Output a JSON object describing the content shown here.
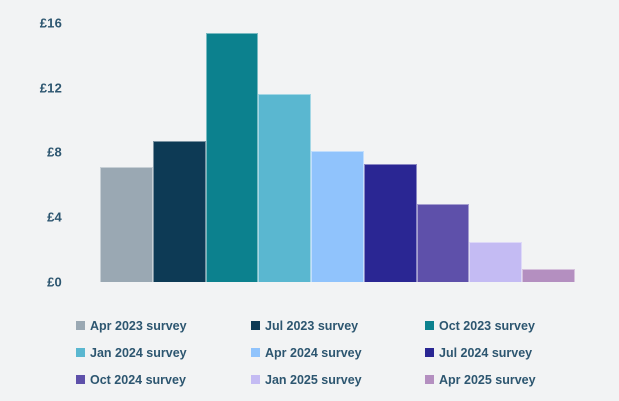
{
  "style": {
    "background": "#f2f3f4",
    "text_color": "#2d5670",
    "bar_border": "rgba(255,255,255,0.45)"
  },
  "chart_data": {
    "type": "bar",
    "title": "",
    "xlabel": "",
    "ylabel": "",
    "currency": "£",
    "ylim": [
      0,
      16
    ],
    "grid": false,
    "legend_position": "bottom",
    "categories": [
      "Apr 2023 survey",
      "Jul 2023 survey",
      "Oct 2023 survey",
      "Jan 2024 survey",
      "Apr 2024 survey",
      "Jul 2024 survey",
      "Oct 2024 survey",
      "Jan 2025 survey",
      "Apr 2025 survey"
    ],
    "values": [
      7.1,
      8.7,
      15.4,
      11.6,
      8.1,
      7.3,
      4.8,
      2.5,
      0.8
    ],
    "colors": [
      "#9aa8b3",
      "#0d3a55",
      "#0c818e",
      "#5ab7d0",
      "#90c3fc",
      "#2a2693",
      "#5e50aa",
      "#c4bbf3",
      "#b48fc0"
    ],
    "yticks": [
      {
        "label": "£16",
        "value": 16
      },
      {
        "label": "£12",
        "value": 12
      },
      {
        "label": "£8",
        "value": 8
      },
      {
        "label": "£4",
        "value": 4
      },
      {
        "label": "£0",
        "value": 0
      }
    ]
  }
}
